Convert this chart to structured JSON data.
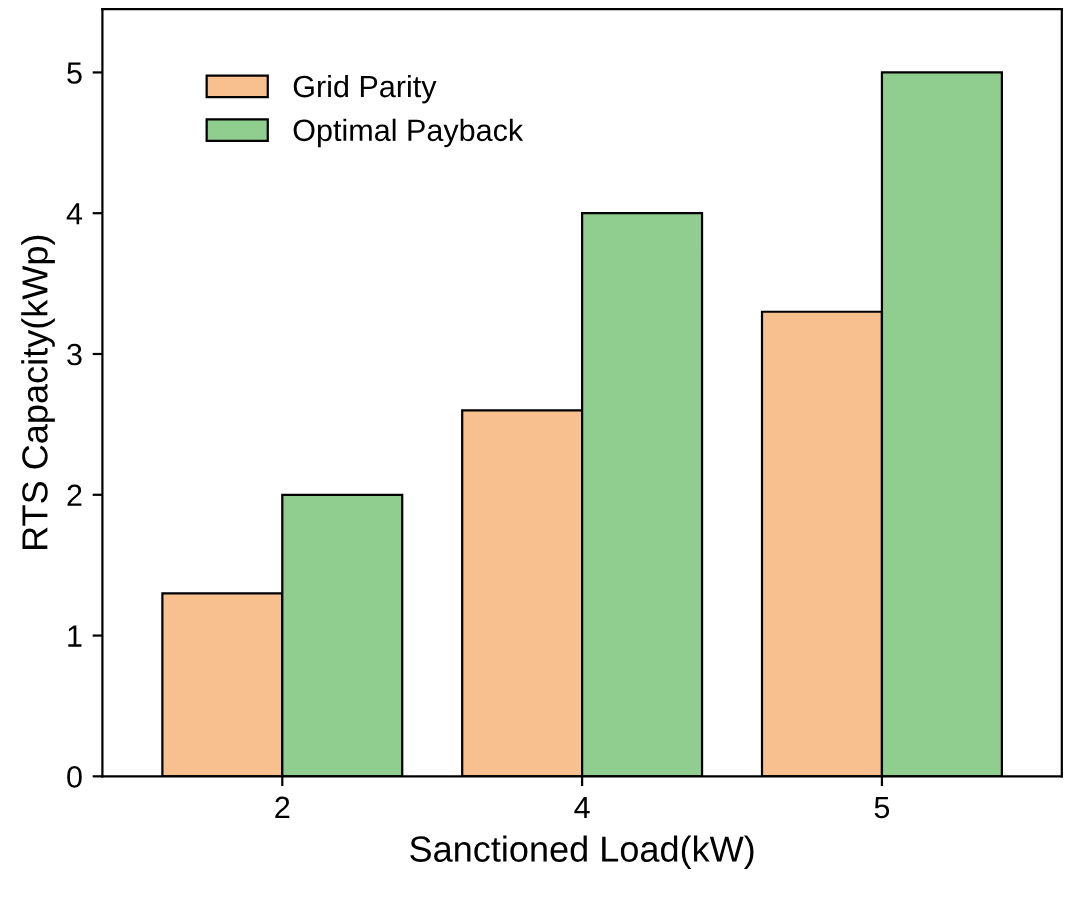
{
  "chart_data": {
    "type": "bar",
    "xlabel": "Sanctioned Load(kW)",
    "ylabel": "RTS Capacity(kWp)",
    "categories": [
      "2",
      "4",
      "5"
    ],
    "series": [
      {
        "name": "Grid Parity",
        "color": "#f9c08f",
        "values": [
          1.3,
          2.6,
          3.3
        ]
      },
      {
        "name": "Optimal Payback",
        "color": "#8fce8f",
        "values": [
          2,
          4,
          5
        ]
      }
    ],
    "ylim": [
      0,
      5.45
    ],
    "yticks": [
      0,
      1,
      2,
      3,
      4,
      5
    ],
    "grid": false,
    "legend": "top left"
  }
}
